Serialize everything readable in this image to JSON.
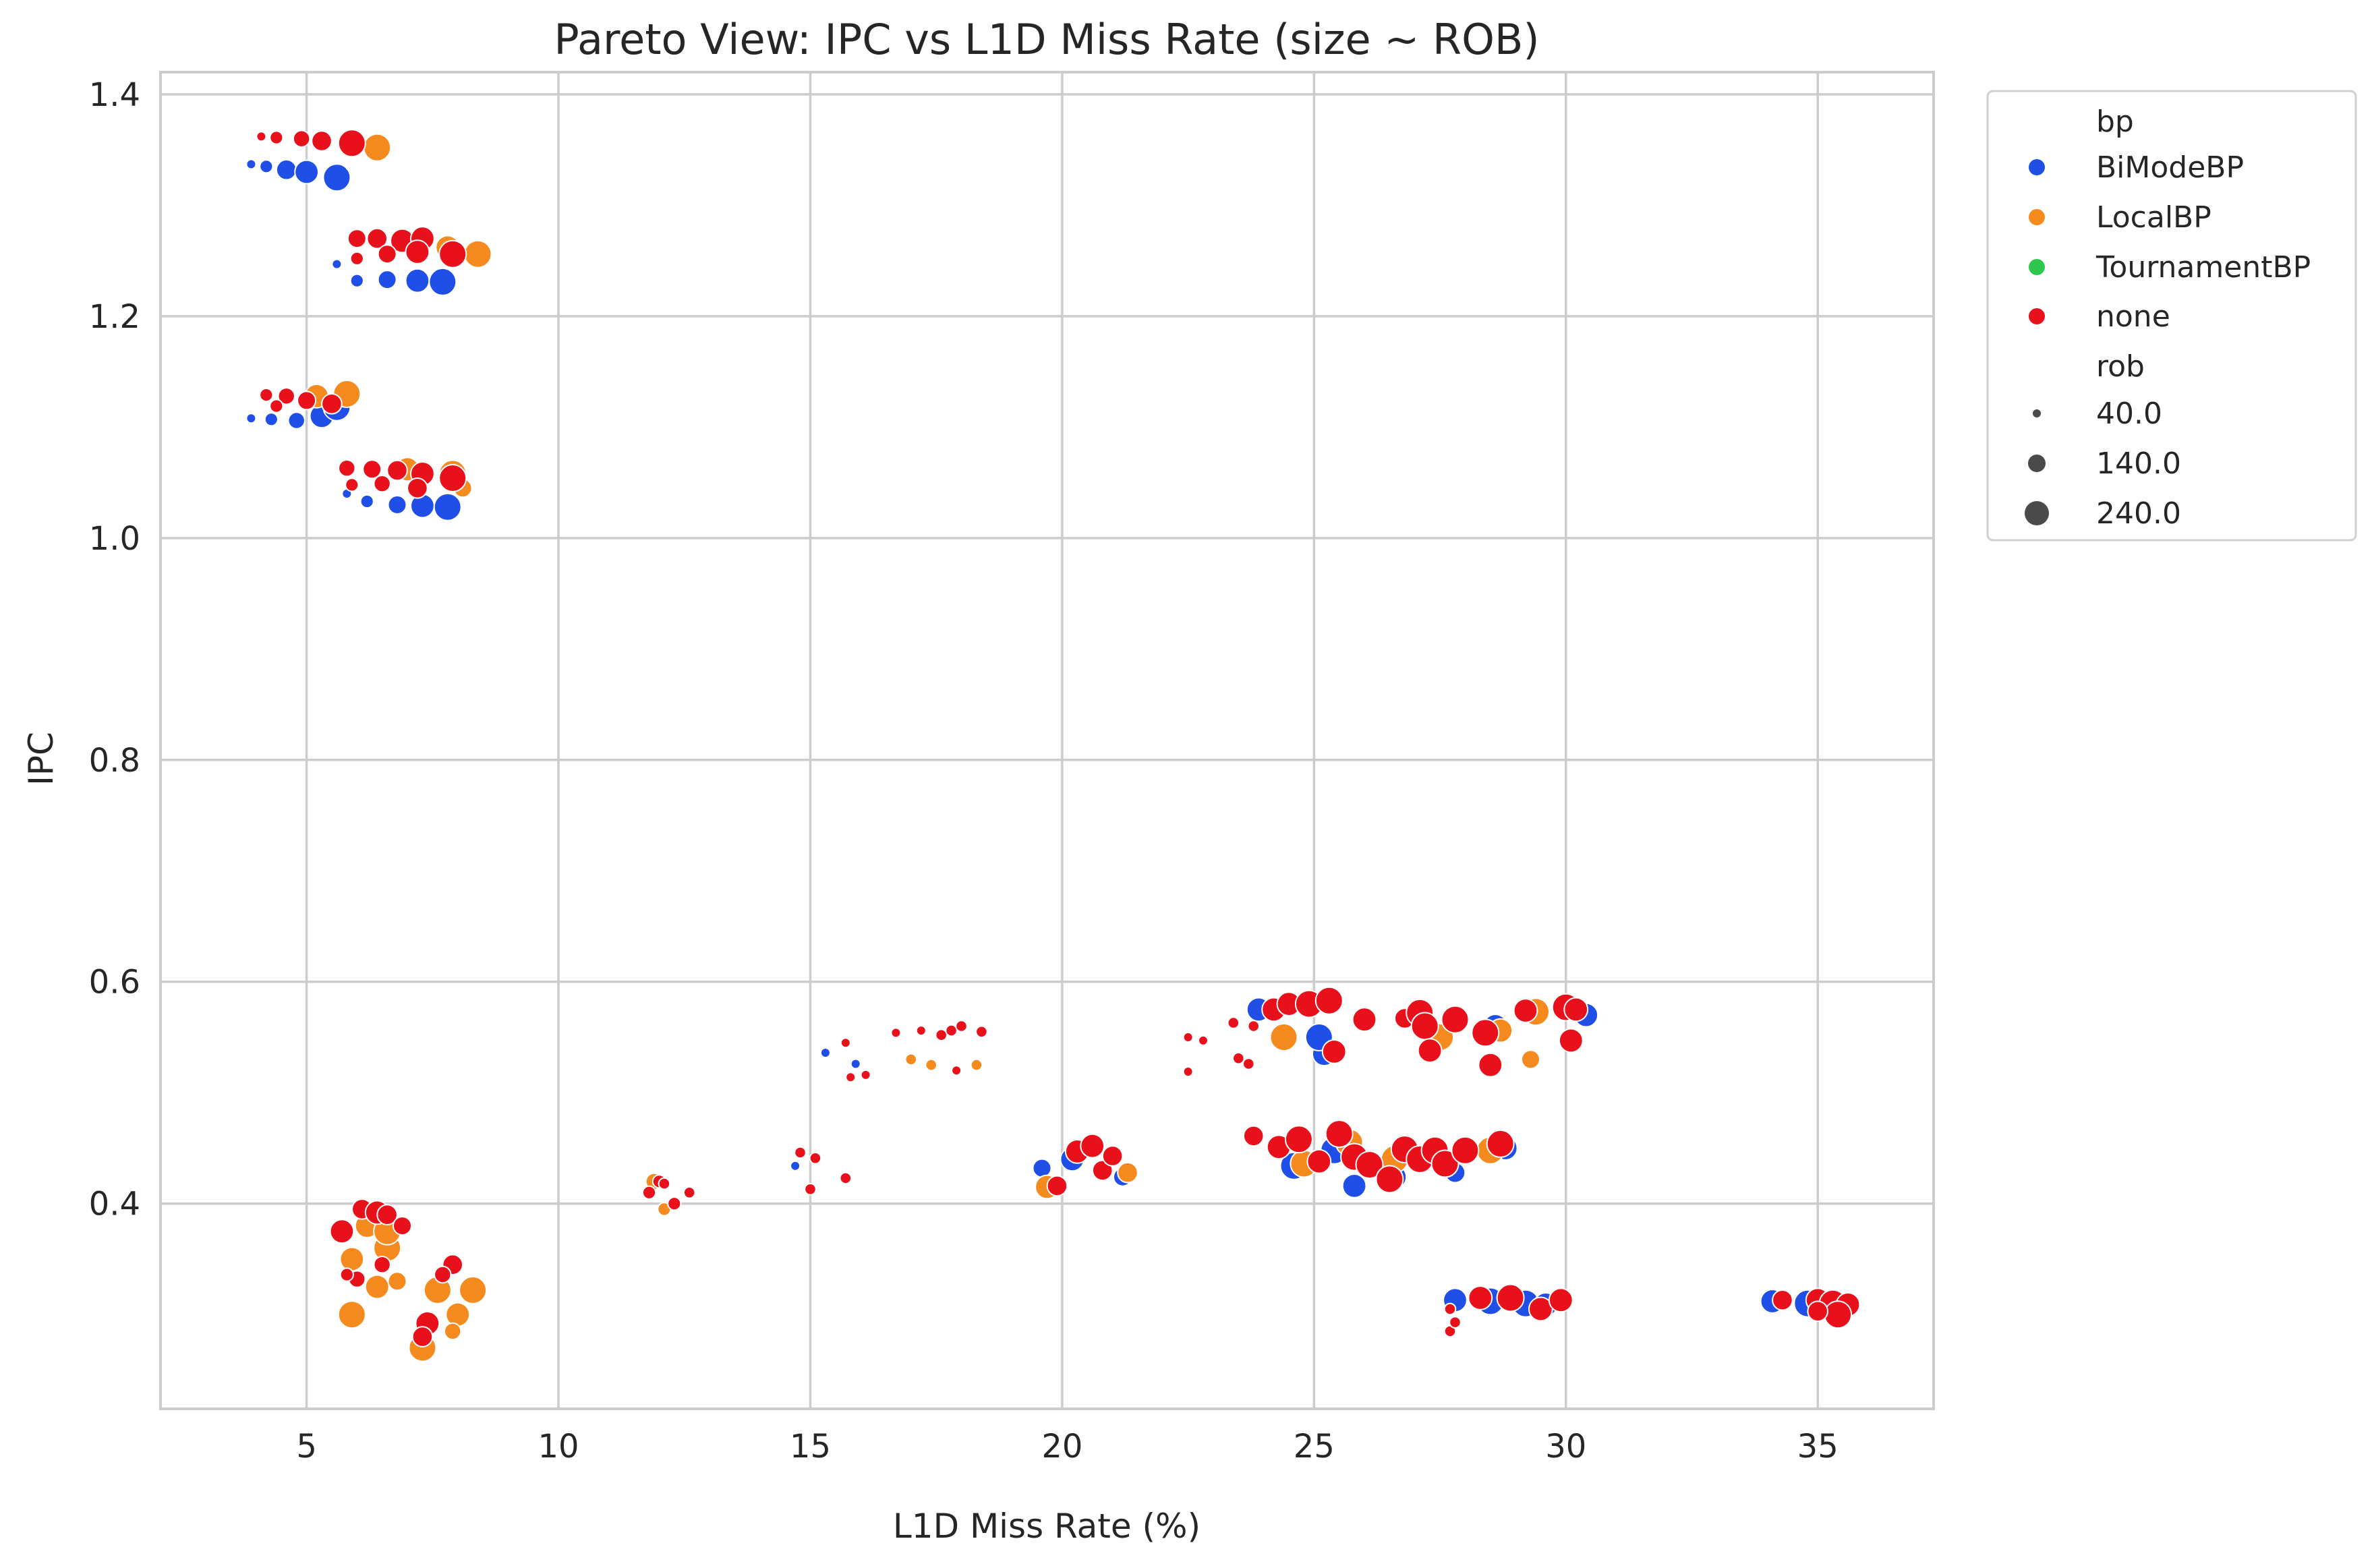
{
  "chart_data": {
    "type": "scatter",
    "title": "Pareto View: IPC vs L1D Miss Rate (size ~ ROB)",
    "xlabel": "L1D Miss Rate (%)",
    "ylabel": "IPC",
    "xlim": [
      2.1,
      37.3
    ],
    "ylim": [
      0.215,
      1.42
    ],
    "x_ticks": [
      "5",
      "10",
      "15",
      "20",
      "25",
      "30",
      "35"
    ],
    "y_ticks": [
      "0.4",
      "0.6",
      "0.8",
      "1.0",
      "1.2",
      "1.4"
    ],
    "grid": true,
    "legend_position": "outside-top-right",
    "hue_title": "bp",
    "size_title": "rob",
    "size_legend": [
      "40.0",
      "140.0",
      "240.0"
    ],
    "series": [
      {
        "name": "BiModeBP",
        "color": "#1f4fe6",
        "points": [
          [
            3.9,
            1.337,
            40
          ],
          [
            4.2,
            1.335,
            80
          ],
          [
            4.6,
            1.332,
            160
          ],
          [
            5.0,
            1.33,
            200
          ],
          [
            5.6,
            1.325,
            240
          ],
          [
            3.9,
            1.108,
            40
          ],
          [
            4.3,
            1.107,
            80
          ],
          [
            4.8,
            1.106,
            120
          ],
          [
            5.3,
            1.11,
            200
          ],
          [
            5.6,
            1.118,
            240
          ],
          [
            5.6,
            1.247,
            40
          ],
          [
            6.0,
            1.232,
            80
          ],
          [
            6.6,
            1.233,
            140
          ],
          [
            7.2,
            1.232,
            200
          ],
          [
            7.7,
            1.231,
            240
          ],
          [
            5.8,
            1.04,
            40
          ],
          [
            6.2,
            1.033,
            80
          ],
          [
            6.8,
            1.03,
            140
          ],
          [
            7.3,
            1.029,
            200
          ],
          [
            7.8,
            1.028,
            240
          ],
          [
            14.7,
            0.434,
            40
          ],
          [
            15.3,
            0.536,
            40
          ],
          [
            15.9,
            0.526,
            40
          ],
          [
            19.6,
            0.432,
            140
          ],
          [
            20.2,
            0.44,
            200
          ],
          [
            21.2,
            0.424,
            140
          ],
          [
            23.9,
            0.575,
            200
          ],
          [
            25.2,
            0.535,
            200
          ],
          [
            25.1,
            0.55,
            240
          ],
          [
            28.6,
            0.56,
            200
          ],
          [
            30.4,
            0.57,
            200
          ],
          [
            24.6,
            0.434,
            240
          ],
          [
            25.4,
            0.448,
            240
          ],
          [
            25.8,
            0.416,
            200
          ],
          [
            26.6,
            0.424,
            200
          ],
          [
            27.8,
            0.428,
            160
          ],
          [
            28.8,
            0.45,
            200
          ],
          [
            27.8,
            0.313,
            200
          ],
          [
            28.5,
            0.312,
            240
          ],
          [
            29.2,
            0.31,
            240
          ],
          [
            29.6,
            0.309,
            200
          ],
          [
            34.1,
            0.312,
            200
          ],
          [
            34.8,
            0.31,
            240
          ],
          [
            35.4,
            0.306,
            240
          ]
        ]
      },
      {
        "name": "LocalBP",
        "color": "#f58a1f",
        "points": [
          [
            5.8,
            1.355,
            140
          ],
          [
            6.4,
            1.352,
            240
          ],
          [
            6.9,
            1.268,
            140
          ],
          [
            7.8,
            1.262,
            200
          ],
          [
            8.4,
            1.256,
            240
          ],
          [
            5.2,
            1.128,
            200
          ],
          [
            5.8,
            1.13,
            240
          ],
          [
            7.0,
            1.062,
            200
          ],
          [
            7.9,
            1.058,
            240
          ],
          [
            8.1,
            1.045,
            140
          ],
          [
            5.9,
            0.3,
            240
          ],
          [
            6.4,
            0.325,
            200
          ],
          [
            6.6,
            0.36,
            240
          ],
          [
            6.8,
            0.33,
            140
          ],
          [
            7.3,
            0.27,
            240
          ],
          [
            7.6,
            0.322,
            240
          ],
          [
            8.0,
            0.3,
            200
          ],
          [
            8.3,
            0.322,
            240
          ],
          [
            7.9,
            0.285,
            120
          ],
          [
            5.9,
            0.35,
            200
          ],
          [
            6.2,
            0.38,
            200
          ],
          [
            6.6,
            0.375,
            240
          ],
          [
            11.9,
            0.42,
            120
          ],
          [
            12.1,
            0.395,
            80
          ],
          [
            19.7,
            0.415,
            200
          ],
          [
            21.3,
            0.428,
            160
          ],
          [
            24.4,
            0.55,
            240
          ],
          [
            27.5,
            0.55,
            240
          ],
          [
            28.7,
            0.556,
            200
          ],
          [
            29.3,
            0.53,
            140
          ],
          [
            29.4,
            0.573,
            240
          ],
          [
            24.8,
            0.436,
            240
          ],
          [
            25.7,
            0.455,
            240
          ],
          [
            26.6,
            0.44,
            240
          ],
          [
            27.6,
            0.436,
            240
          ],
          [
            28.5,
            0.448,
            240
          ],
          [
            17.0,
            0.53,
            60
          ],
          [
            17.4,
            0.525,
            60
          ],
          [
            18.3,
            0.525,
            60
          ]
        ]
      },
      {
        "name": "TournamentBP",
        "color": "#2ec84f",
        "points": []
      },
      {
        "name": "none",
        "color": "#e8101a",
        "points": [
          [
            4.1,
            1.362,
            40
          ],
          [
            4.4,
            1.361,
            80
          ],
          [
            4.9,
            1.36,
            120
          ],
          [
            5.3,
            1.358,
            160
          ],
          [
            5.9,
            1.356,
            240
          ],
          [
            6.0,
            1.27,
            140
          ],
          [
            6.4,
            1.27,
            160
          ],
          [
            6.9,
            1.268,
            200
          ],
          [
            7.3,
            1.27,
            200
          ],
          [
            7.9,
            1.256,
            240
          ],
          [
            6.0,
            1.252,
            80
          ],
          [
            6.6,
            1.256,
            140
          ],
          [
            7.2,
            1.258,
            200
          ],
          [
            4.2,
            1.129,
            80
          ],
          [
            4.6,
            1.128,
            120
          ],
          [
            5.0,
            1.124,
            140
          ],
          [
            5.5,
            1.121,
            160
          ],
          [
            4.4,
            1.119,
            80
          ],
          [
            5.8,
            1.063,
            120
          ],
          [
            6.3,
            1.062,
            140
          ],
          [
            6.8,
            1.061,
            160
          ],
          [
            7.3,
            1.058,
            200
          ],
          [
            7.9,
            1.054,
            240
          ],
          [
            5.9,
            1.048,
            80
          ],
          [
            6.5,
            1.049,
            120
          ],
          [
            7.2,
            1.045,
            160
          ],
          [
            5.7,
            0.375,
            200
          ],
          [
            6.1,
            0.395,
            160
          ],
          [
            6.4,
            0.392,
            200
          ],
          [
            6.6,
            0.39,
            160
          ],
          [
            6.9,
            0.38,
            140
          ],
          [
            6.0,
            0.332,
            120
          ],
          [
            5.8,
            0.336,
            80
          ],
          [
            6.5,
            0.345,
            120
          ],
          [
            7.4,
            0.292,
            200
          ],
          [
            7.3,
            0.28,
            160
          ],
          [
            7.9,
            0.345,
            160
          ],
          [
            7.7,
            0.336,
            120
          ],
          [
            11.8,
            0.41,
            80
          ],
          [
            12.0,
            0.42,
            80
          ],
          [
            12.3,
            0.4,
            80
          ],
          [
            12.6,
            0.41,
            60
          ],
          [
            12.1,
            0.418,
            60
          ],
          [
            14.8,
            0.446,
            60
          ],
          [
            15.1,
            0.441,
            60
          ],
          [
            15.7,
            0.423,
            60
          ],
          [
            15.0,
            0.413,
            60
          ],
          [
            15.7,
            0.545,
            40
          ],
          [
            15.8,
            0.514,
            40
          ],
          [
            16.1,
            0.516,
            40
          ],
          [
            16.7,
            0.554,
            40
          ],
          [
            17.2,
            0.556,
            40
          ],
          [
            17.6,
            0.552,
            60
          ],
          [
            17.8,
            0.556,
            60
          ],
          [
            18.0,
            0.56,
            60
          ],
          [
            18.4,
            0.555,
            60
          ],
          [
            17.9,
            0.52,
            40
          ],
          [
            19.9,
            0.416,
            160
          ],
          [
            20.3,
            0.447,
            200
          ],
          [
            20.6,
            0.452,
            200
          ],
          [
            20.8,
            0.43,
            160
          ],
          [
            21.0,
            0.443,
            160
          ],
          [
            22.5,
            0.55,
            40
          ],
          [
            22.5,
            0.519,
            40
          ],
          [
            22.8,
            0.547,
            40
          ],
          [
            23.4,
            0.563,
            60
          ],
          [
            23.5,
            0.531,
            60
          ],
          [
            23.8,
            0.56,
            60
          ],
          [
            23.7,
            0.526,
            60
          ],
          [
            24.2,
            0.575,
            200
          ],
          [
            24.5,
            0.58,
            200
          ],
          [
            24.9,
            0.58,
            240
          ],
          [
            25.3,
            0.583,
            240
          ],
          [
            25.4,
            0.537,
            200
          ],
          [
            26.0,
            0.566,
            200
          ],
          [
            26.8,
            0.567,
            160
          ],
          [
            27.1,
            0.572,
            240
          ],
          [
            27.2,
            0.56,
            240
          ],
          [
            27.3,
            0.538,
            200
          ],
          [
            27.8,
            0.566,
            240
          ],
          [
            28.4,
            0.554,
            240
          ],
          [
            28.5,
            0.525,
            200
          ],
          [
            29.2,
            0.574,
            200
          ],
          [
            30.0,
            0.577,
            240
          ],
          [
            30.2,
            0.575,
            200
          ],
          [
            30.1,
            0.547,
            200
          ],
          [
            23.8,
            0.461,
            160
          ],
          [
            24.3,
            0.451,
            200
          ],
          [
            24.7,
            0.458,
            240
          ],
          [
            25.1,
            0.438,
            200
          ],
          [
            25.5,
            0.463,
            240
          ],
          [
            25.8,
            0.442,
            240
          ],
          [
            26.1,
            0.435,
            240
          ],
          [
            26.5,
            0.422,
            240
          ],
          [
            26.8,
            0.449,
            240
          ],
          [
            27.1,
            0.44,
            240
          ],
          [
            27.4,
            0.448,
            240
          ],
          [
            27.6,
            0.436,
            240
          ],
          [
            28.0,
            0.448,
            240
          ],
          [
            28.7,
            0.454,
            240
          ],
          [
            27.7,
            0.305,
            60
          ],
          [
            27.7,
            0.285,
            60
          ],
          [
            27.8,
            0.293,
            60
          ],
          [
            28.3,
            0.315,
            200
          ],
          [
            28.9,
            0.315,
            240
          ],
          [
            29.5,
            0.305,
            200
          ],
          [
            29.9,
            0.313,
            200
          ],
          [
            34.3,
            0.313,
            160
          ],
          [
            35.0,
            0.313,
            200
          ],
          [
            35.3,
            0.31,
            240
          ],
          [
            35.6,
            0.309,
            200
          ],
          [
            35.4,
            0.3,
            240
          ],
          [
            35.0,
            0.303,
            160
          ]
        ]
      }
    ]
  }
}
